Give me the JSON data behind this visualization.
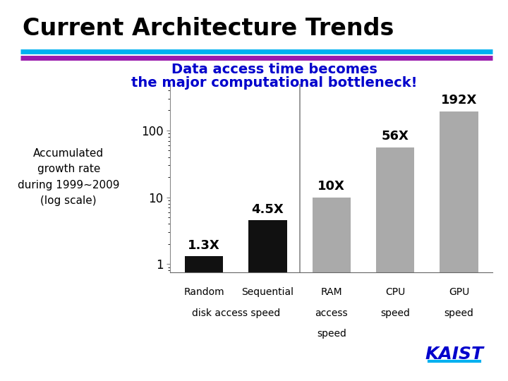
{
  "title": "Current Architecture Trends",
  "subtitle_line1": "Data access time becomes",
  "subtitle_line2": "the major computational bottleneck!",
  "ylabel_text": "Accumulated\ngrowth rate\nduring 1999~2009\n(log scale)",
  "values": [
    1.3,
    4.5,
    10,
    56,
    192
  ],
  "bar_colors": [
    "#111111",
    "#111111",
    "#aaaaaa",
    "#aaaaaa",
    "#aaaaaa"
  ],
  "bar_labels": [
    "1.3X",
    "4.5X",
    "10X",
    "56X",
    "192X"
  ],
  "subtitle_color": "#0000cc",
  "title_color": "#000000",
  "bg_color": "#ffffff",
  "cyan_line_color": "#00b0f0",
  "purple_line_color": "#9b1aad",
  "kaist_text": "KAIST",
  "kaist_color": "#0000cc",
  "xtick_row1": [
    "Random",
    "Sequential",
    "RAM",
    "CPU",
    "GPU"
  ],
  "xtick_row2": [
    "",
    "",
    "access",
    "speed",
    "speed"
  ],
  "xtick_row3": [
    "",
    "",
    "speed",
    "",
    ""
  ],
  "disk_label": "disk access speed",
  "yticks": [
    1,
    10,
    100
  ],
  "ytick_labels": [
    "1",
    "10",
    "100"
  ],
  "ylim_low": 0.75,
  "ylim_high": 500
}
